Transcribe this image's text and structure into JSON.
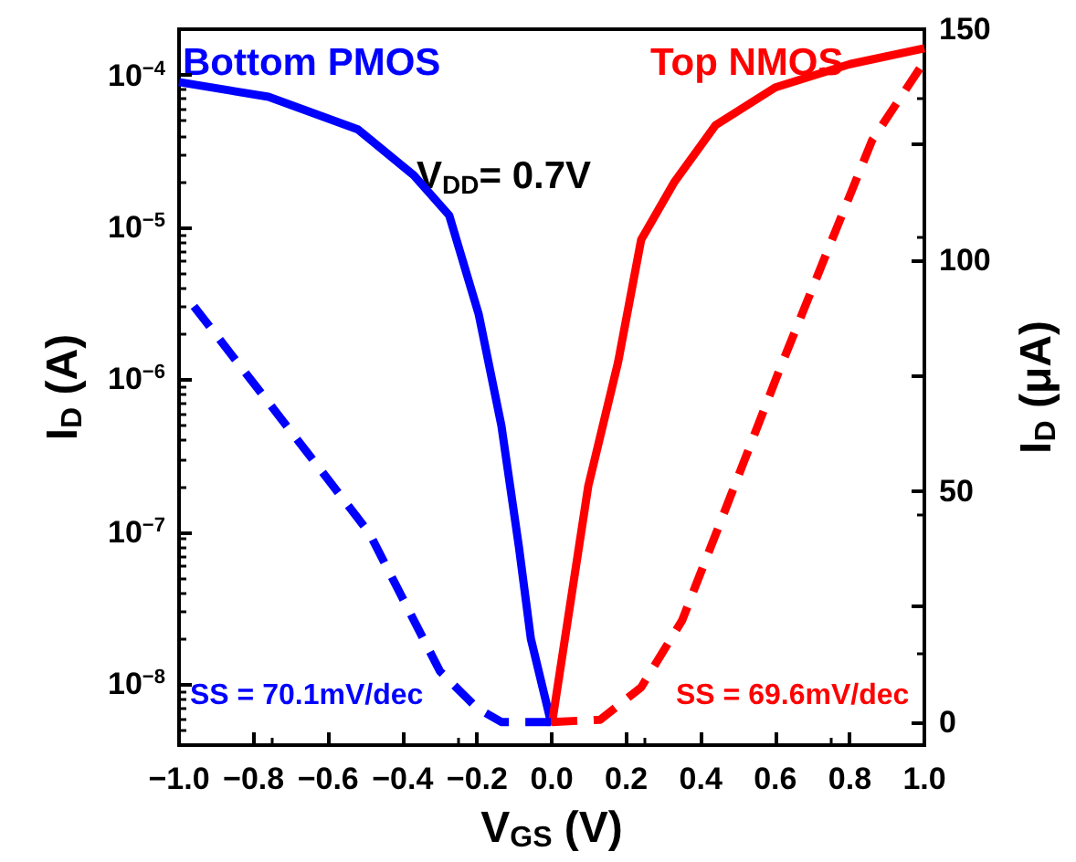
{
  "chart_data": {
    "type": "line",
    "xlabel": "V$_{GS}$ (V)",
    "ylabel": "I$_{D}$ (A)",
    "y2label": "I$_{D}$ (μA)",
    "log": "y",
    "grid": false,
    "legend": false,
    "marker": "none",
    "xlim": [
      -1.0,
      1.0
    ],
    "xticks": [
      {
        "value": -1.0,
        "label": "−1.0"
      },
      {
        "value": -0.8,
        "label": "−0.8"
      },
      {
        "value": -0.6,
        "label": "−0.6"
      },
      {
        "value": -0.4,
        "label": "−0.4"
      },
      {
        "value": -0.2,
        "label": "−0.2"
      },
      {
        "value": 0,
        "label": "0.0"
      },
      {
        "value": 0.2,
        "label": "0.2"
      },
      {
        "value": 0.4,
        "label": "0.4"
      },
      {
        "value": 0.6,
        "label": "0.6"
      },
      {
        "value": 0.8,
        "label": "0.8"
      },
      {
        "value": 1.0,
        "label": "1.0"
      }
    ],
    "ylim": [
      4e-09,
      0.0002
    ],
    "yticks": [
      {
        "value": 1e-08,
        "label": "10$^{−8}$"
      },
      {
        "value": 1e-07,
        "label": "10$^{−7}$"
      },
      {
        "value": 1e-06,
        "label": "10$^{−6}$"
      },
      {
        "value": 1e-05,
        "label": "10$^{−5}$"
      },
      {
        "value": 0.0001,
        "label": "10$^{−4}$"
      }
    ],
    "y2lim": [
      -5,
      150
    ],
    "y2ticks": [
      0,
      {
        "value": 25,
        "label": null
      },
      50,
      {
        "value": 75,
        "label": null
      },
      100,
      {
        "value": 125,
        "label": null
      },
      150
    ],
    "annotations": [
      "V$_{DD}$= 0.7V",
      "SS = 70.1mV/dec",
      "SS = 69.6mV/dec"
    ],
    "series": [
      {
        "name": "Bottom PMOS",
        "color": "#0000ff",
        "line_style": "solid",
        "x": [
          -1.0,
          -0.76,
          -0.52,
          -0.37,
          -0.275,
          -0.196,
          -0.135,
          -0.088,
          -0.056,
          0
        ],
        "values": [
          9e-05,
          7.2e-05,
          4.4e-05,
          2.2e-05,
          1.2e-05,
          2.7e-06,
          5e-07,
          8e-08,
          2e-08,
          5.4e-09
        ]
      },
      {
        "name": "Top NMOS",
        "color": "#ff0000",
        "line_style": "solid",
        "x": [
          0,
          0.098,
          0.178,
          0.24,
          0.33,
          0.44,
          0.6,
          0.8,
          1.0
        ],
        "values": [
          5.4e-09,
          2e-07,
          1.3e-06,
          8.3e-06,
          2e-05,
          4.7e-05,
          8.3e-05,
          0.000118,
          0.00015
        ]
      },
      {
        "color": "#0000ff",
        "line_style": "dashed",
        "axis": "y2",
        "x": [
          -0.96,
          -0.71,
          -0.49,
          -0.3,
          -0.2,
          -0.135,
          0
        ],
        "values": [
          90,
          64,
          41,
          11,
          3,
          0,
          0
        ]
      },
      {
        "color": "#ff0000",
        "line_style": "dashed",
        "axis": "y2",
        "x": [
          0,
          0.13,
          0.24,
          0.35,
          0.49,
          0.61,
          0.74,
          0.86,
          1.0
        ],
        "values": [
          0,
          0.5,
          7.5,
          22,
          51,
          76,
          102,
          126,
          143
        ]
      }
    ]
  }
}
